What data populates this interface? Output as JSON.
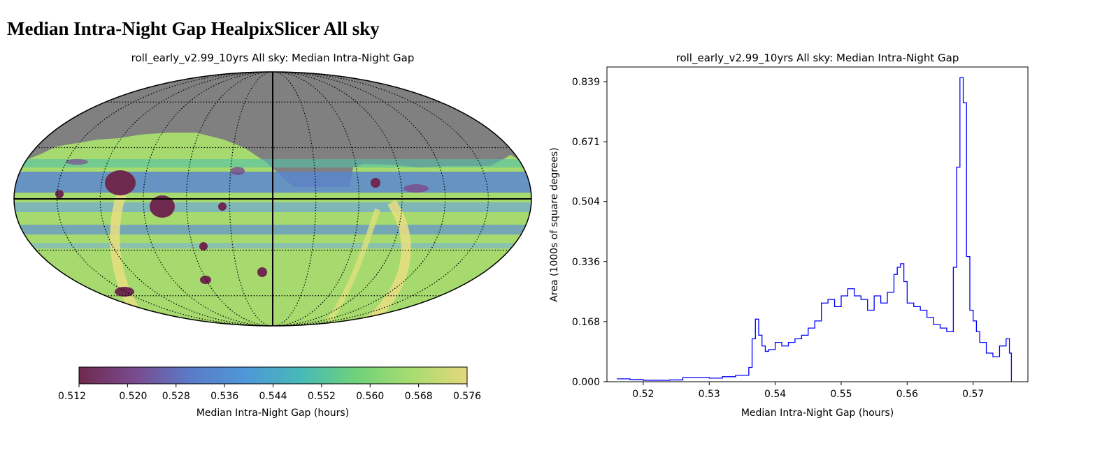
{
  "page_heading": "Median Intra-Night Gap HealpixSlicer All sky",
  "chart_data": [
    {
      "type": "heatmap",
      "projection": "mollweide",
      "title": "roll_early_v2.99_10yrs All sky: Median Intra-Night Gap",
      "colorbar": {
        "label": "Median Intra-Night Gap (hours)",
        "range": [
          0.512,
          0.576
        ],
        "ticks": [
          "0.512",
          "0.520",
          "0.528",
          "0.536",
          "0.544",
          "0.552",
          "0.560",
          "0.568",
          "0.576"
        ],
        "colormap": [
          "#6e2a4e",
          "#7a4a8e",
          "#5a7bc8",
          "#4f97d8",
          "#47b9b7",
          "#6fd27a",
          "#a8dc70",
          "#e4d77c"
        ]
      },
      "colors": {
        "masked": "#808080",
        "graticule": "#000000"
      }
    },
    {
      "type": "line",
      "drawstyle": "steps",
      "title": "roll_early_v2.99_10yrs All sky: Median Intra-Night Gap",
      "xlabel": "Median Intra-Night Gap (hours)",
      "ylabel": "Area (1000s of square degrees)",
      "xlim": [
        0.5145,
        0.5783
      ],
      "ylim": [
        0.0,
        0.88
      ],
      "xticks": [
        "0.52",
        "0.53",
        "0.54",
        "0.55",
        "0.56",
        "0.57"
      ],
      "xtick_values": [
        0.52,
        0.53,
        0.54,
        0.55,
        0.56,
        0.57
      ],
      "yticks": [
        "0.000",
        "0.168",
        "0.336",
        "0.504",
        "0.671",
        "0.839"
      ],
      "ytick_values": [
        0.0,
        0.168,
        0.336,
        0.504,
        0.671,
        0.839
      ],
      "line_color": "#0000ff",
      "series": [
        {
          "name": "histogram",
          "x": [
            0.516,
            0.518,
            0.52,
            0.522,
            0.524,
            0.526,
            0.528,
            0.53,
            0.532,
            0.534,
            0.536,
            0.5365,
            0.537,
            0.5375,
            0.538,
            0.5385,
            0.539,
            0.54,
            0.541,
            0.542,
            0.543,
            0.544,
            0.545,
            0.546,
            0.547,
            0.548,
            0.549,
            0.55,
            0.551,
            0.552,
            0.553,
            0.554,
            0.555,
            0.556,
            0.557,
            0.558,
            0.5585,
            0.559,
            0.5595,
            0.56,
            0.561,
            0.562,
            0.563,
            0.564,
            0.565,
            0.566,
            0.567,
            0.5675,
            0.568,
            0.5685,
            0.569,
            0.5695,
            0.57,
            0.5705,
            0.571,
            0.572,
            0.573,
            0.574,
            0.575,
            0.5755,
            0.5758
          ],
          "y": [
            0.008,
            0.006,
            0.004,
            0.004,
            0.005,
            0.012,
            0.012,
            0.01,
            0.014,
            0.018,
            0.04,
            0.12,
            0.175,
            0.13,
            0.1,
            0.085,
            0.09,
            0.11,
            0.1,
            0.11,
            0.12,
            0.13,
            0.15,
            0.17,
            0.22,
            0.23,
            0.21,
            0.24,
            0.26,
            0.24,
            0.23,
            0.2,
            0.24,
            0.22,
            0.25,
            0.3,
            0.32,
            0.33,
            0.28,
            0.22,
            0.21,
            0.2,
            0.18,
            0.16,
            0.15,
            0.14,
            0.32,
            0.6,
            0.85,
            0.78,
            0.35,
            0.2,
            0.17,
            0.14,
            0.11,
            0.08,
            0.07,
            0.1,
            0.12,
            0.08,
            0.0
          ]
        }
      ]
    }
  ]
}
